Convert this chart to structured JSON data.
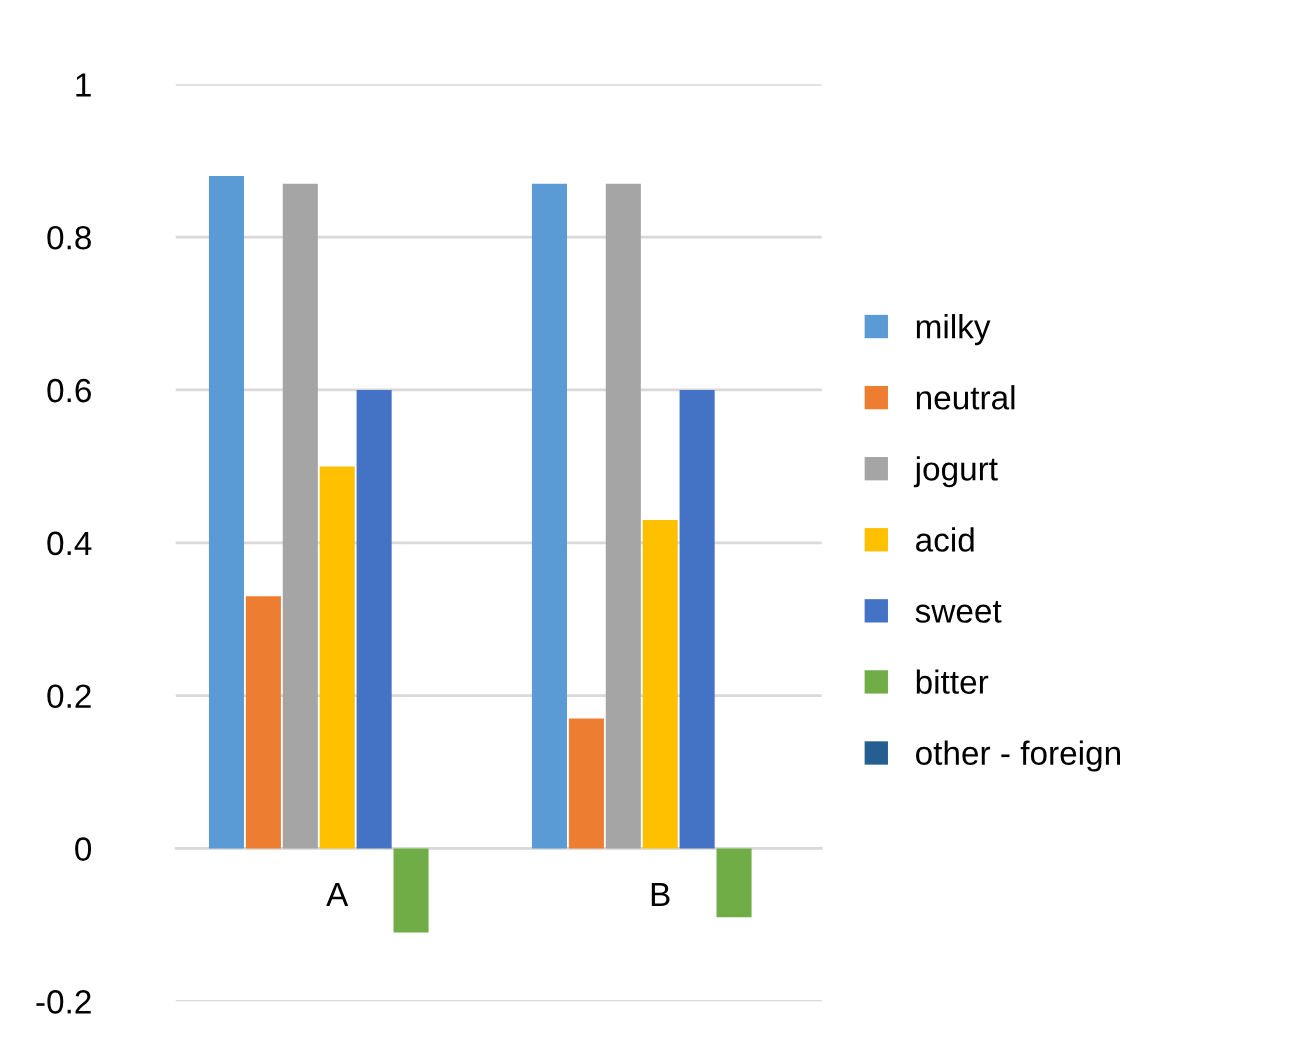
{
  "chart_data": {
    "type": "bar",
    "categories": [
      "A",
      "B"
    ],
    "series": [
      {
        "name": "milky",
        "color": "#5b9bd5",
        "values": [
          0.88,
          0.87
        ]
      },
      {
        "name": "neutral",
        "color": "#ed7d31",
        "values": [
          0.33,
          0.17
        ]
      },
      {
        "name": "jogurt",
        "color": "#a5a5a5",
        "values": [
          0.87,
          0.87
        ]
      },
      {
        "name": "acid",
        "color": "#ffc000",
        "values": [
          0.5,
          0.43
        ]
      },
      {
        "name": "sweet",
        "color": "#4472c4",
        "values": [
          0.6,
          0.6
        ]
      },
      {
        "name": "bitter",
        "color": "#70ad47",
        "values": [
          -0.11,
          -0.09
        ]
      },
      {
        "name": "other - foreign",
        "color": "#255e91",
        "values": [
          0,
          0
        ]
      }
    ],
    "ylim": [
      -0.2,
      1
    ],
    "yticks": [
      -0.2,
      0,
      0.2,
      0.4,
      0.6,
      0.8,
      1
    ],
    "grid": "y",
    "legend": "right"
  }
}
